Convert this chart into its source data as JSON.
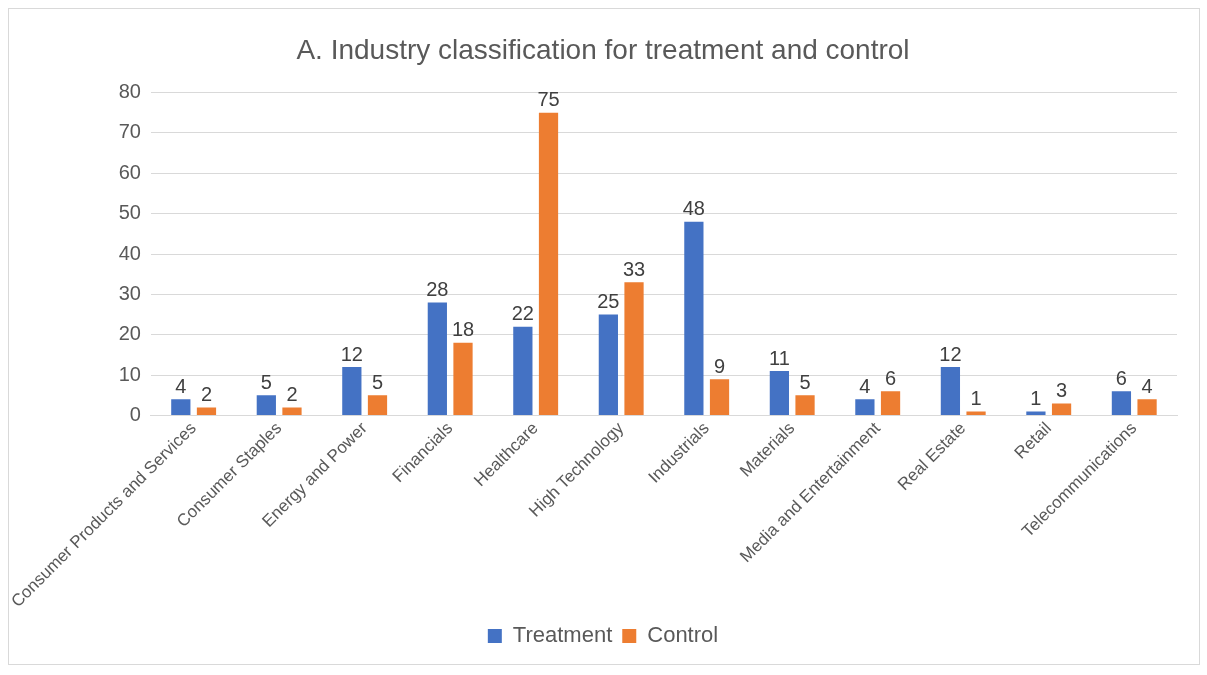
{
  "chart_data": {
    "type": "bar",
    "title": "A. Industry classification for treatment and control",
    "categories": [
      "Consumer Products and Services",
      "Consumer Staples",
      "Energy and Power",
      "Financials",
      "Healthcare",
      "High Technology",
      "Industrials",
      "Materials",
      "Media and Entertainment",
      "Real Estate",
      "Retail",
      "Telecommunications"
    ],
    "series": [
      {
        "name": "Treatment",
        "color": "#4472c4",
        "values": [
          4,
          5,
          12,
          28,
          22,
          25,
          48,
          11,
          4,
          12,
          1,
          6
        ]
      },
      {
        "name": "Control",
        "color": "#ed7d31",
        "values": [
          2,
          2,
          5,
          18,
          75,
          33,
          9,
          5,
          6,
          1,
          3,
          4
        ]
      }
    ],
    "ylim": [
      0,
      80
    ],
    "yticks": [
      0,
      10,
      20,
      30,
      40,
      50,
      60,
      70,
      80
    ],
    "grid": "y",
    "legend": "bottom",
    "data_labels": true
  }
}
